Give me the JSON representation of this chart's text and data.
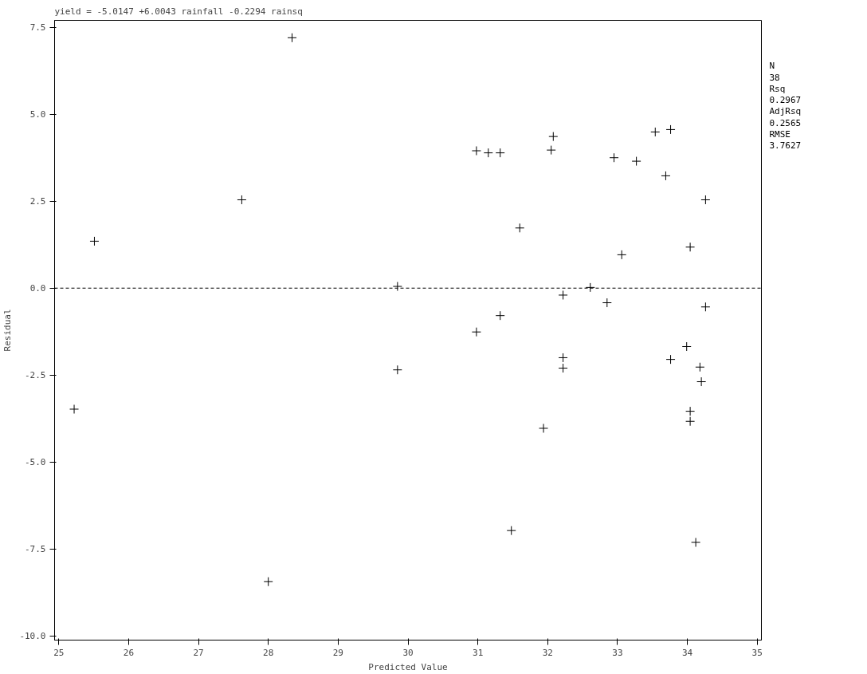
{
  "chart_data": {
    "type": "scatter",
    "title": "yield = -5.0147 +6.0043 rainfall -0.2294 rainsq",
    "xlabel": "Predicted Value",
    "ylabel": "Residual",
    "annotations": [
      "N",
      "38",
      "Rsq",
      "0.2967",
      "AdjRsq",
      "0.2565",
      "RMSE",
      "3.7627"
    ],
    "marker": "cross",
    "grid": false,
    "xlim": [
      24.94,
      35.06
    ],
    "ylim": [
      -10.12,
      7.7
    ],
    "xticks": [
      25,
      26,
      27,
      28,
      29,
      30,
      31,
      32,
      33,
      34,
      35
    ],
    "yticks": [
      {
        "value": 7.5,
        "label": "7.5"
      },
      {
        "value": 5,
        "label": "5.0"
      },
      {
        "value": 2.5,
        "label": "2.5"
      },
      {
        "value": 0,
        "label": "0.0"
      },
      {
        "value": -2.5,
        "label": "-2.5"
      },
      {
        "value": -5,
        "label": "-5.0"
      },
      {
        "value": -7.5,
        "label": "-7.5"
      },
      {
        "value": -10,
        "label": "-10.0"
      }
    ],
    "ref_lines": [
      {
        "axis": "y",
        "value": 0,
        "label": null,
        "color": "#000000",
        "line_style": "dashed"
      }
    ],
    "series": [
      {
        "color": "#000000",
        "x": [
          25.22,
          25.51,
          27.62,
          28.34,
          28.0,
          29.85,
          29.85,
          30.98,
          30.98,
          31.15,
          31.32,
          31.32,
          31.48,
          31.6,
          31.94,
          32.05,
          32.08,
          32.22,
          32.22,
          32.22,
          32.61,
          32.85,
          32.95,
          33.06,
          33.27,
          33.54,
          33.69,
          33.76,
          33.76,
          33.99,
          34.04,
          34.04,
          34.04,
          34.12,
          34.18,
          34.2,
          34.26,
          34.26
        ],
        "values": [
          -3.48,
          1.35,
          2.54,
          7.2,
          -8.44,
          0.05,
          -2.35,
          3.95,
          -1.26,
          3.89,
          3.89,
          -0.79,
          -6.97,
          1.73,
          -4.03,
          3.97,
          4.36,
          -0.2,
          -2.0,
          -2.3,
          0.02,
          -0.42,
          3.75,
          0.96,
          3.65,
          4.49,
          3.23,
          4.56,
          -2.05,
          -1.68,
          1.18,
          -3.54,
          -3.83,
          -7.31,
          -2.27,
          -2.69,
          2.54,
          -0.54
        ]
      }
    ]
  }
}
